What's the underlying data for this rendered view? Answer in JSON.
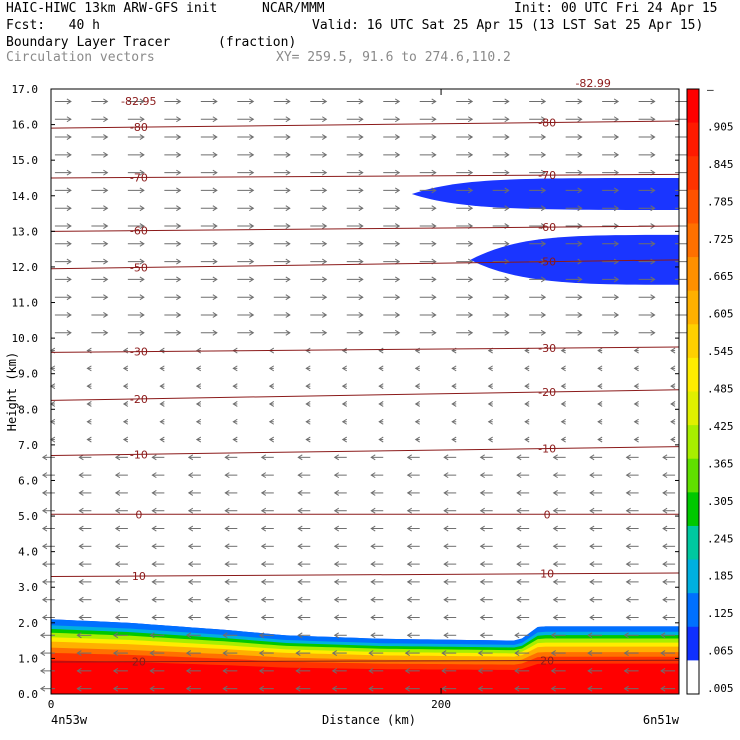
{
  "header": {
    "model": "HAIC-HIWC 13km ARW-GFS init",
    "org": "NCAR/MMM",
    "init": "Init: 00 UTC Fri 24 Apr 15",
    "fcst": "Fcst:   40 h",
    "valid": "Valid: 16 UTC Sat 25 Apr 15 (13 LST Sat 25 Apr 15)",
    "field": "Boundary Layer Tracer",
    "units": "(fraction)",
    "vectors": "Circulation vectors",
    "xy": "XY= 259.5, 91.6 to 274.6,110.2"
  },
  "chart_data": {
    "type": "heatmap",
    "ylabel": "Height (km)",
    "xlabel": "Distance (km)",
    "x_endpoints": {
      "left": "4n53w",
      "right": "6n51w"
    },
    "xlim": [
      0,
      322
    ],
    "ylim": [
      0,
      17
    ],
    "x_ticks": [
      0,
      200
    ],
    "y_ticks": [
      "0.0",
      "1.0",
      "2.0",
      "3.0",
      "4.0",
      "5.0",
      "6.0",
      "7.0",
      "8.0",
      "9.0",
      "10.0",
      "11.0",
      "12.0",
      "13.0",
      "14.0",
      "15.0",
      "16.0",
      "17.0"
    ],
    "colorbar": {
      "labels": [
        "–",
        ".905",
        ".845",
        ".785",
        ".725",
        ".665",
        ".605",
        ".545",
        ".485",
        ".425",
        ".365",
        ".305",
        ".245",
        ".185",
        ".125",
        ".065",
        ".005"
      ],
      "colors": [
        "#ff0000",
        "#ff1a00",
        "#ff3300",
        "#ff5200",
        "#ff7000",
        "#ff9000",
        "#ffb000",
        "#ffd000",
        "#ffec00",
        "#e0f000",
        "#a8ee00",
        "#60e000",
        "#00c800",
        "#00c8a0",
        "#00b0e0",
        "#0070ff",
        "#1030ff",
        "#ffffff"
      ]
    },
    "boundary_layer_top_km": [
      {
        "x": 0,
        "top": 2.1
      },
      {
        "x": 40,
        "top": 2.0
      },
      {
        "x": 90,
        "top": 1.8
      },
      {
        "x": 120,
        "top": 1.65
      },
      {
        "x": 170,
        "top": 1.55
      },
      {
        "x": 240,
        "top": 1.5
      },
      {
        "x": 250,
        "top": 1.9
      },
      {
        "x": 322,
        "top": 1.9
      }
    ],
    "tracer_upper": [
      {
        "band": "upper",
        "x_start": 185,
        "bottom_km": 13.6,
        "top_km": 14.5
      },
      {
        "band": "lower",
        "x_start": 215,
        "bottom_km": 11.5,
        "top_km": 12.9
      }
    ],
    "temperature_contours_c": [
      {
        "level": 20,
        "label": "20",
        "y_left": 0.9,
        "y_right": 0.95
      },
      {
        "level": 10,
        "label": "10",
        "y_left": 3.3,
        "y_right": 3.4
      },
      {
        "level": 0,
        "label": "0",
        "y_left": 5.05,
        "y_right": 5.05
      },
      {
        "level": -10,
        "label": "-10",
        "y_left": 6.7,
        "y_right": 6.95
      },
      {
        "level": -20,
        "label": "-20",
        "y_left": 8.25,
        "y_right": 8.55
      },
      {
        "level": -30,
        "label": "-30",
        "y_left": 9.6,
        "y_right": 9.75
      },
      {
        "level": -50,
        "label": "-50",
        "y_left": 11.95,
        "y_right": 12.2
      },
      {
        "level": -60,
        "label": "-60",
        "y_left": 13.0,
        "y_right": 13.15
      },
      {
        "level": -70,
        "label": "-70",
        "y_left": 14.5,
        "y_right": 14.6
      },
      {
        "level": -80,
        "label": "-80",
        "y_left": 15.9,
        "y_right": 16.1
      }
    ],
    "extra_contour_labels": [
      "-82.95",
      "-82.99"
    ]
  }
}
